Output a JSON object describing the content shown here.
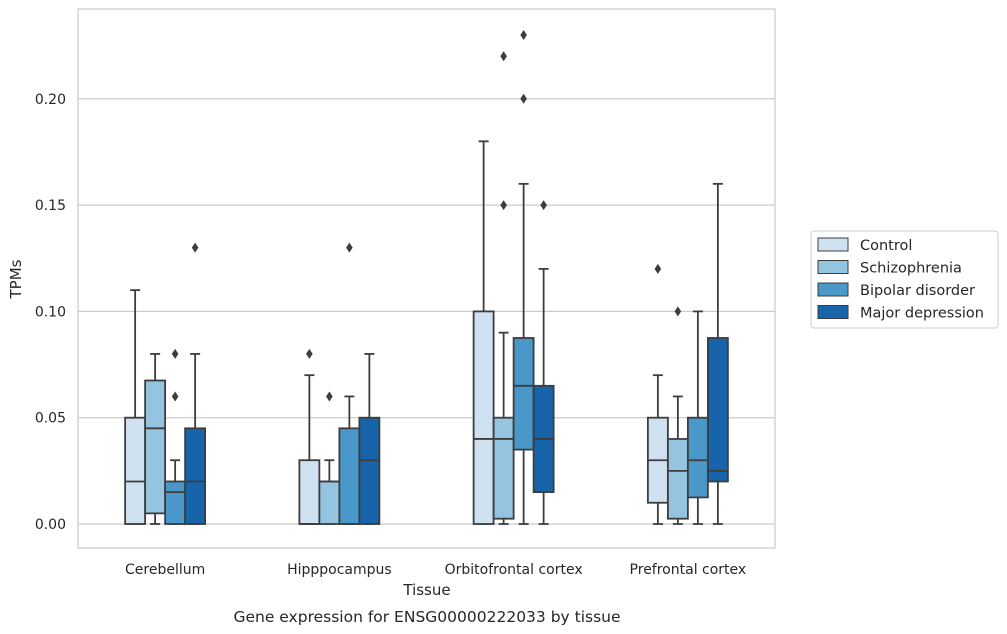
{
  "chart_data": {
    "type": "box",
    "title": "",
    "caption": "Gene expression for ENSG00000222033 by tissue",
    "xlabel": "Tissue",
    "ylabel": "TPMs",
    "ylim": [
      -0.011,
      0.242
    ],
    "yticks": [
      "0.00",
      "0.05",
      "0.10",
      "0.15",
      "0.20"
    ],
    "grid": true,
    "legend_position": "right",
    "categories": [
      "Cerebellum",
      "Hipppocampus",
      "Orbitofrontal cortex",
      "Prefrontal cortex"
    ],
    "series": [
      {
        "name": "Control",
        "color": "#d0e1f2",
        "boxes": [
          {
            "whislo": 0,
            "q1": 0,
            "med": 0.02,
            "q3": 0.05,
            "whishi": 0.11,
            "fliers": []
          },
          {
            "whislo": 0,
            "q1": 0,
            "med": 0,
            "q3": 0.03,
            "whishi": 0.07,
            "fliers": [
              0.08
            ]
          },
          {
            "whislo": 0,
            "q1": 0,
            "med": 0.04,
            "q3": 0.1,
            "whishi": 0.18,
            "fliers": []
          },
          {
            "whislo": 0,
            "q1": 0.01,
            "med": 0.03,
            "q3": 0.05,
            "whishi": 0.07,
            "fliers": [
              0.12
            ]
          }
        ]
      },
      {
        "name": "Schizophrenia",
        "color": "#94c4df",
        "boxes": [
          {
            "whislo": 0,
            "q1": 0.005,
            "med": 0.045,
            "q3": 0.0675,
            "whishi": 0.08,
            "fliers": []
          },
          {
            "whislo": 0,
            "q1": 0,
            "med": 0.02,
            "q3": 0.02,
            "whishi": 0.03,
            "fliers": [
              0.06
            ]
          },
          {
            "whislo": 0,
            "q1": 0.0025,
            "med": 0.04,
            "q3": 0.05,
            "whishi": 0.09,
            "fliers": [
              0.15,
              0.22
            ]
          },
          {
            "whislo": 0,
            "q1": 0.0025,
            "med": 0.025,
            "q3": 0.04,
            "whishi": 0.06,
            "fliers": [
              0.1
            ]
          }
        ]
      },
      {
        "name": "Bipolar disorder",
        "color": "#4a98c9",
        "boxes": [
          {
            "whislo": 0,
            "q1": 0,
            "med": 0.015,
            "q3": 0.02,
            "whishi": 0.03,
            "fliers": [
              0.06,
              0.08
            ]
          },
          {
            "whislo": 0,
            "q1": 0,
            "med": 0,
            "q3": 0.045,
            "whishi": 0.06,
            "fliers": [
              0.13
            ]
          },
          {
            "whislo": 0,
            "q1": 0.035,
            "med": 0.065,
            "q3": 0.0875,
            "whishi": 0.16,
            "fliers": [
              0.2,
              0.23
            ]
          },
          {
            "whislo": 0,
            "q1": 0.0125,
            "med": 0.03,
            "q3": 0.05,
            "whishi": 0.1,
            "fliers": []
          }
        ]
      },
      {
        "name": "Major depression",
        "color": "#1764ab",
        "boxes": [
          {
            "whislo": 0,
            "q1": 0,
            "med": 0.02,
            "q3": 0.045,
            "whishi": 0.08,
            "fliers": [
              0.13
            ]
          },
          {
            "whislo": 0,
            "q1": 0,
            "med": 0.03,
            "q3": 0.05,
            "whishi": 0.08,
            "fliers": []
          },
          {
            "whislo": 0,
            "q1": 0.015,
            "med": 0.04,
            "q3": 0.065,
            "whishi": 0.12,
            "fliers": [
              0.15
            ]
          },
          {
            "whislo": 0,
            "q1": 0.02,
            "med": 0.025,
            "q3": 0.0875,
            "whishi": 0.16,
            "fliers": []
          }
        ]
      }
    ]
  }
}
